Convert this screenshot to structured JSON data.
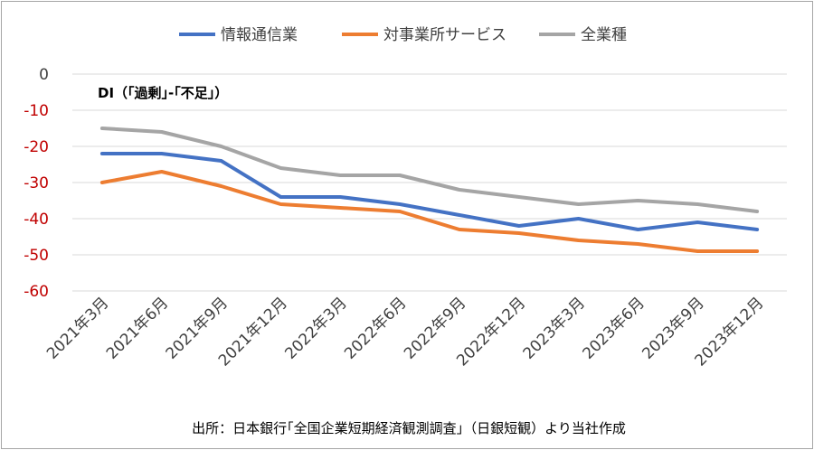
{
  "chart_data": {
    "type": "line",
    "annotation": "DI（｢過剰｣-｢不足｣）",
    "source": "出所：日本銀行｢全国企業短期経済観測調査｣（日銀短観）より当社作成",
    "categories": [
      "2021年3月",
      "2021年6月",
      "2021年9月",
      "2021年12月",
      "2022年3月",
      "2022年6月",
      "2022年9月",
      "2022年12月",
      "2023年3月",
      "2023年6月",
      "2023年9月",
      "2023年12月"
    ],
    "ylim": [
      -60,
      0
    ],
    "yticks": [
      0,
      -10,
      -20,
      -30,
      -40,
      -50,
      -60
    ],
    "grid": true,
    "legend_position": "top",
    "series": [
      {
        "name": "情報通信業",
        "color": "#4472c4",
        "values": [
          -22,
          -22,
          -24,
          -34,
          -34,
          -36,
          -39,
          -42,
          -40,
          -43,
          -41,
          -43
        ]
      },
      {
        "name": "対事業所サービス",
        "color": "#ed7d31",
        "values": [
          -30,
          -27,
          -31,
          -36,
          -37,
          -38,
          -43,
          -44,
          -46,
          -47,
          -49,
          -49
        ]
      },
      {
        "name": "全業種",
        "color": "#a5a5a5",
        "values": [
          -15,
          -16,
          -20,
          -26,
          -28,
          -28,
          -32,
          -34,
          -36,
          -35,
          -36,
          -38
        ]
      }
    ]
  }
}
